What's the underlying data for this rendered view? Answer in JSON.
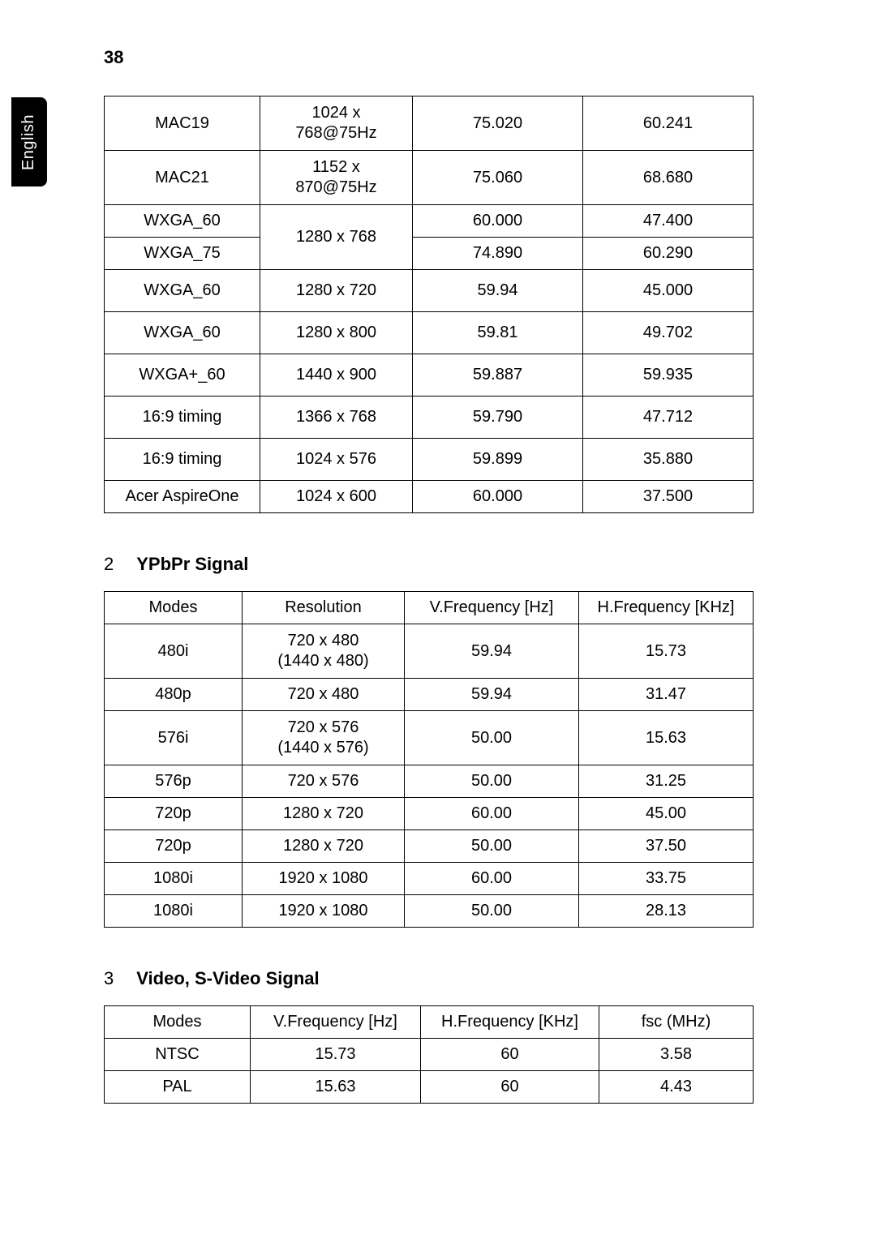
{
  "page_number": "38",
  "language_tab": "English",
  "colors": {
    "text": "#000000",
    "bg": "#ffffff",
    "tab_bg": "#000000",
    "tab_text": "#ffffff",
    "border": "#000000"
  },
  "fonts": {
    "body_size_pt": 15,
    "heading_weight": 700
  },
  "table1": {
    "type": "table",
    "rows": [
      {
        "mode": "MAC19",
        "res_l1": "1024 x",
        "res_l2": "768@75Hz",
        "v": "75.020",
        "h": "60.241"
      },
      {
        "mode": "MAC21",
        "res_l1": "1152 x",
        "res_l2": "870@75Hz",
        "v": "75.060",
        "h": "68.680"
      },
      {
        "mode": "WXGA_60",
        "res": "1280 x 768",
        "v": "60.000",
        "h": "47.400",
        "rowspan_res": 2
      },
      {
        "mode": "WXGA_75",
        "v": "74.890",
        "h": "60.290"
      },
      {
        "mode": "WXGA_60",
        "res": "1280 x 720",
        "v": "59.94",
        "h": "45.000"
      },
      {
        "mode": "WXGA_60",
        "res": "1280 x 800",
        "v": "59.81",
        "h": "49.702"
      },
      {
        "mode": "WXGA+_60",
        "res": "1440 x 900",
        "v": "59.887",
        "h": "59.935"
      },
      {
        "mode": "16:9 timing",
        "res": "1366 x 768",
        "v": "59.790",
        "h": "47.712"
      },
      {
        "mode": "16:9 timing",
        "res": "1024 x 576",
        "v": "59.899",
        "h": "35.880"
      },
      {
        "mode": "Acer AspireOne",
        "res": "1024 x 600",
        "v": "60.000",
        "h": "37.500"
      }
    ]
  },
  "section2": {
    "num": "2",
    "title": "YPbPr Signal"
  },
  "table2": {
    "type": "table",
    "headers": {
      "modes": "Modes",
      "res": "Resolution",
      "v": "V.Frequency [Hz]",
      "h": "H.Frequency [KHz]"
    },
    "rows": [
      {
        "mode": "480i",
        "res_l1": "720 x 480",
        "res_l2": "(1440 x 480)",
        "v": "59.94",
        "h": "15.73"
      },
      {
        "mode": "480p",
        "res": "720 x 480",
        "v": "59.94",
        "h": "31.47"
      },
      {
        "mode": "576i",
        "res_l1": "720 x 576",
        "res_l2": "(1440 x 576)",
        "v": "50.00",
        "h": "15.63"
      },
      {
        "mode": "576p",
        "res": "720 x 576",
        "v": "50.00",
        "h": "31.25"
      },
      {
        "mode": "720p",
        "res": "1280 x 720",
        "v": "60.00",
        "h": "45.00"
      },
      {
        "mode": "720p",
        "res": "1280 x 720",
        "v": "50.00",
        "h": "37.50"
      },
      {
        "mode": "1080i",
        "res": "1920 x 1080",
        "v": "60.00",
        "h": "33.75"
      },
      {
        "mode": "1080i",
        "res": "1920 x 1080",
        "v": "50.00",
        "h": "28.13"
      }
    ]
  },
  "section3": {
    "num": "3",
    "title": "Video, S-Video Signal"
  },
  "table3": {
    "type": "table",
    "headers": {
      "modes": "Modes",
      "v": "V.Frequency [Hz]",
      "h": "H.Frequency [KHz]",
      "fsc": "fsc (MHz)"
    },
    "rows": [
      {
        "mode": "NTSC",
        "v": "15.73",
        "h": "60",
        "fsc": "3.58"
      },
      {
        "mode": "PAL",
        "v": "15.63",
        "h": "60",
        "fsc": "4.43"
      }
    ]
  }
}
